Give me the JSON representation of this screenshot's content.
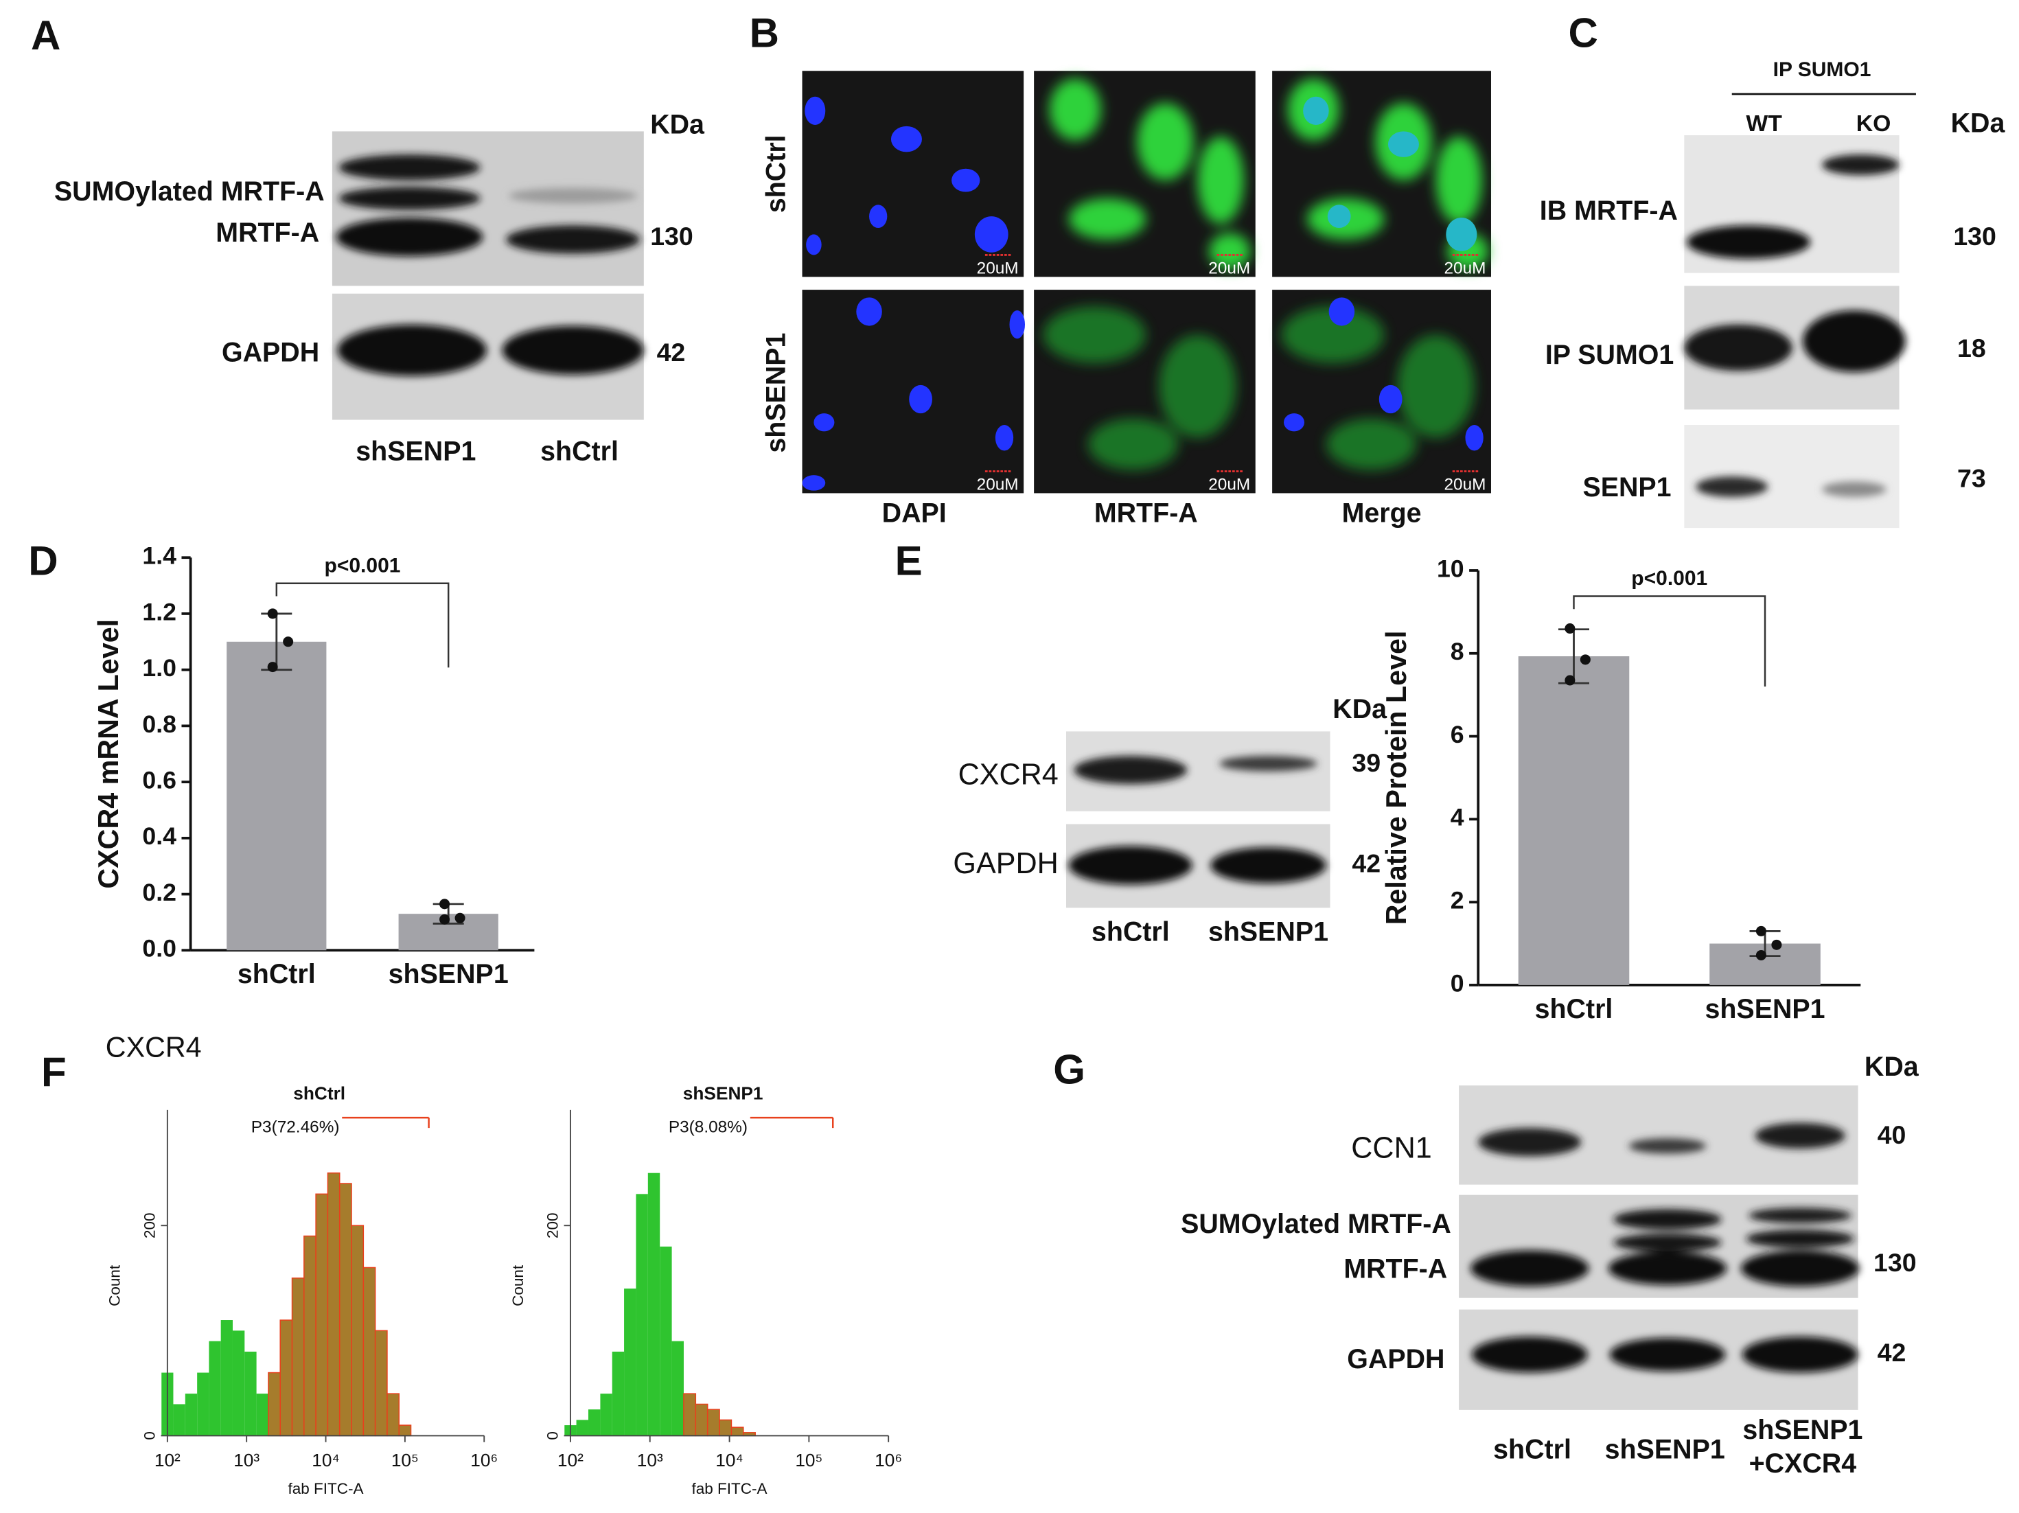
{
  "panels": {
    "A": {
      "letter": "A",
      "kda": "KDa",
      "rows": [
        "SUMOylated MRTF-A",
        "MRTF-A",
        "GAPDH"
      ],
      "sizes": [
        "130",
        "42"
      ],
      "lanes": [
        "shSENP1",
        "shCtrl"
      ]
    },
    "B": {
      "letter": "B",
      "rows": [
        "shCtrl",
        "shSENP1"
      ],
      "columns": [
        "DAPI",
        "MRTF-A",
        "Merge"
      ],
      "scale_bar": "20uM"
    },
    "C": {
      "letter": "C",
      "header": "IP SUMO1",
      "lanes": [
        "WT",
        "KO"
      ],
      "kda": "KDa",
      "rows": [
        "IB MRTF-A",
        "IP SUMO1",
        "SENP1"
      ],
      "sizes": [
        "130",
        "18",
        "73"
      ]
    },
    "D": {
      "letter": "D"
    },
    "E": {
      "letter": "E",
      "kda": "KDa",
      "rows": [
        "CXCR4",
        "GAPDH"
      ],
      "sizes": [
        "39",
        "42"
      ],
      "lanes": [
        "shCtrl",
        "shSENP1"
      ]
    },
    "F": {
      "letter": "F",
      "title": "CXCR4"
    },
    "G": {
      "letter": "G",
      "kda": "KDa",
      "rows": [
        "CCN1",
        "SUMOylated MRTF-A",
        "MRTF-A",
        "GAPDH"
      ],
      "sizes": [
        "40",
        "130",
        "42"
      ],
      "lanes": [
        [
          "shCtrl"
        ],
        [
          "shSENP1"
        ],
        [
          "shSENP1",
          "+CXCR4"
        ]
      ]
    }
  },
  "chart_data": [
    {
      "type": "bar",
      "ylabel": "CXCR4 mRNA Level",
      "categories": [
        "shCtrl",
        "shSENP1"
      ],
      "values": [
        1.1,
        0.13
      ],
      "errors": [
        0.1,
        0.035
      ],
      "points": [
        [
          1.2,
          1.1,
          1.01
        ],
        [
          0.165,
          0.115,
          0.11
        ]
      ],
      "color": "#a3a3a8",
      "ylim": [
        0,
        1.4
      ],
      "yticks": [
        {
          "value": 0,
          "label": "0.0"
        },
        0.2,
        0.4,
        0.6,
        0.8,
        {
          "value": 1,
          "label": "1.0"
        },
        1.2,
        1.4
      ],
      "annotation": "p<0.001"
    },
    {
      "type": "bar",
      "ylabel": "Relative Protein Level",
      "categories": [
        "shCtrl",
        "shSENP1"
      ],
      "values": [
        7.93,
        1.0
      ],
      "errors": [
        0.65,
        0.3
      ],
      "points": [
        [
          8.6,
          7.85,
          7.35
        ],
        [
          1.3,
          0.97,
          0.72
        ]
      ],
      "color": "#a3a3a8",
      "ylim": [
        0,
        10
      ],
      "yticks": [
        0,
        2,
        4,
        6,
        8,
        10
      ],
      "annotation": "p<0.001"
    },
    {
      "type": "area",
      "title": "shCtrl",
      "xlabel": "fab FITC-A",
      "ylabel": "Count",
      "xscale": "log",
      "x": [
        100,
        141,
        200,
        282,
        398,
        562,
        794,
        1122,
        1585,
        2239,
        3162,
        4467,
        6310,
        8913,
        12589,
        17783,
        25119,
        35481,
        50119,
        70795,
        100000,
        141254
      ],
      "values": [
        60,
        30,
        40,
        60,
        90,
        110,
        100,
        80,
        40,
        60,
        110,
        150,
        190,
        230,
        250,
        240,
        200,
        160,
        100,
        40,
        10,
        0
      ],
      "color": "#2fc42f",
      "gate": {
        "label": "P3(72.46%)",
        "start": 2000,
        "end": 200000,
        "color": "#e8401c",
        "fill": "#a67c2c"
      },
      "xlim": [
        100,
        1000000
      ],
      "xticks": [
        {
          "value": 100,
          "label": "10²"
        },
        {
          "value": 1000,
          "label": "10³"
        },
        {
          "value": 10000,
          "label": "10⁴"
        },
        {
          "value": 100000,
          "label": "10⁵"
        },
        {
          "value": 1000000,
          "label": "10⁶"
        }
      ],
      "ylim": [
        0,
        310
      ],
      "yticks": [
        0,
        200
      ]
    },
    {
      "type": "area",
      "title": "shSENP1",
      "xlabel": "fab FITC-A",
      "ylabel": "Count",
      "xscale": "log",
      "x": [
        100,
        141,
        200,
        282,
        398,
        562,
        794,
        1122,
        1585,
        2239,
        3162,
        4467,
        6310,
        8913,
        12589,
        17783,
        25119,
        35481,
        50119,
        70795,
        100000,
        141254
      ],
      "values": [
        10,
        15,
        25,
        40,
        80,
        140,
        230,
        250,
        180,
        90,
        40,
        30,
        25,
        15,
        8,
        3,
        0,
        0,
        0,
        0,
        0,
        0
      ],
      "color": "#2fc42f",
      "gate": {
        "label": "P3(8.08%)",
        "start": 3000,
        "end": 200000,
        "color": "#e8401c",
        "fill": "#a67c2c"
      },
      "xlim": [
        100,
        1000000
      ],
      "xticks": [
        {
          "value": 100,
          "label": "10²"
        },
        {
          "value": 1000,
          "label": "10³"
        },
        {
          "value": 10000,
          "label": "10⁴"
        },
        {
          "value": 100000,
          "label": "10⁵"
        },
        {
          "value": 1000000,
          "label": "10⁶"
        }
      ],
      "ylim": [
        0,
        310
      ],
      "yticks": [
        0,
        200
      ]
    }
  ]
}
